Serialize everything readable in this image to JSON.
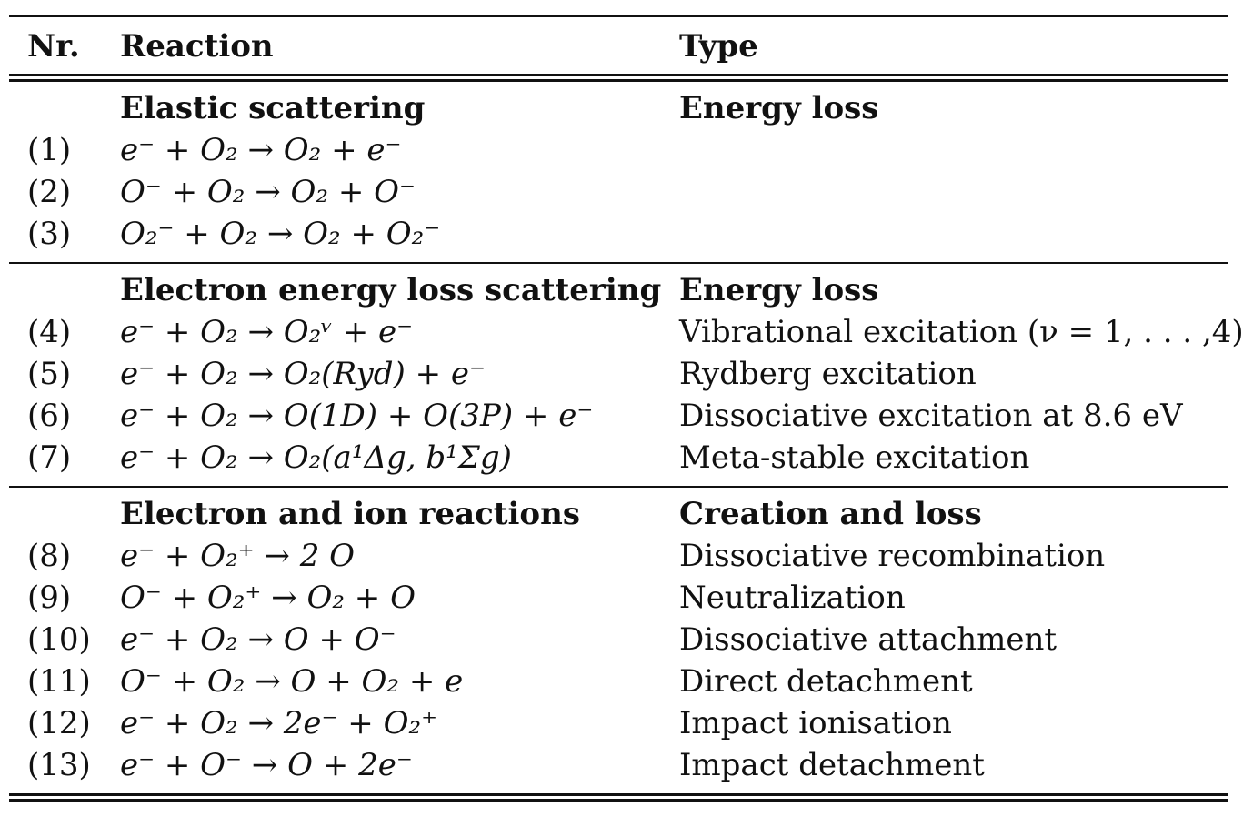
{
  "header": {
    "nr": "Nr.",
    "reaction": "Reaction",
    "type": "Type"
  },
  "sections": [
    {
      "title": "Elastic scattering",
      "type_title": "Energy loss",
      "rows": [
        {
          "nr": "(1)",
          "reaction": "e⁻ + O₂ → O₂ + e⁻",
          "type": ""
        },
        {
          "nr": "(2)",
          "reaction": "O⁻ + O₂ → O₂ + O⁻",
          "type": ""
        },
        {
          "nr": "(3)",
          "reaction": "O₂⁻ + O₂ → O₂ + O₂⁻",
          "type": ""
        }
      ]
    },
    {
      "title": "Electron energy loss scattering",
      "type_title": "Energy loss",
      "rows": [
        {
          "nr": "(4)",
          "reaction": "e⁻ + O₂ → O₂ᵛ + e⁻",
          "type": "Vibrational excitation (ν = 1, . . . ,4)"
        },
        {
          "nr": "(5)",
          "reaction": "e⁻ + O₂ → O₂(Ryd) + e⁻",
          "type": "Rydberg excitation"
        },
        {
          "nr": "(6)",
          "reaction": "e⁻ + O₂ → O(1D) + O(3P) + e⁻",
          "type": "Dissociative excitation at 8.6 eV"
        },
        {
          "nr": "(7)",
          "reaction": "e⁻ + O₂ → O₂(a¹Δg, b¹Σg)",
          "type": "Meta-stable excitation"
        }
      ]
    },
    {
      "title": "Electron and ion reactions",
      "type_title": "Creation and loss",
      "rows": [
        {
          "nr": "(8)",
          "reaction": "e⁻ + O₂⁺ → 2 O",
          "type": "Dissociative recombination"
        },
        {
          "nr": "(9)",
          "reaction": "O⁻ + O₂⁺ → O₂ + O",
          "type": "Neutralization"
        },
        {
          "nr": "(10)",
          "reaction": "e⁻ + O₂ → O + O⁻",
          "type": "Dissociative attachment"
        },
        {
          "nr": "(11)",
          "reaction": "O⁻ + O₂ → O + O₂ + e",
          "type": "Direct detachment"
        },
        {
          "nr": "(12)",
          "reaction": "e⁻ + O₂ → 2e⁻ + O₂⁺",
          "type": "Impact ionisation"
        },
        {
          "nr": "(13)",
          "reaction": "e⁻ + O⁻ → O + 2e⁻",
          "type": "Impact detachment"
        }
      ]
    }
  ]
}
